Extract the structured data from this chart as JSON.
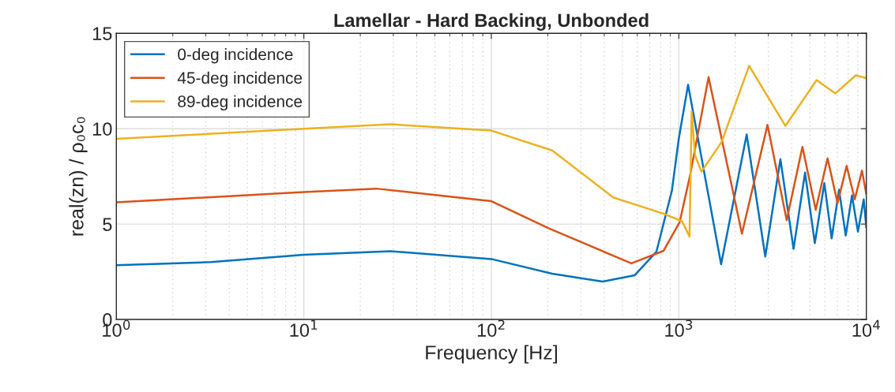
{
  "chart_data": {
    "type": "line",
    "title": "Lamellar - Hard Backing, Unbonded",
    "xlabel": "Frequency [Hz]",
    "ylabel": "real(zn) / ρ₀c₀",
    "log": "x",
    "xlim": [
      1,
      10000
    ],
    "ylim": [
      0,
      15
    ],
    "xticks": [
      {
        "value": 1,
        "label": "10$^{0}$"
      },
      {
        "value": 10,
        "label": "10$^{1}$"
      },
      {
        "value": 100,
        "label": "10$^{2}$"
      },
      {
        "value": 1000,
        "label": "10$^{3}$"
      },
      {
        "value": 10000,
        "label": "10$^{4}$"
      }
    ],
    "yticks": [
      0,
      5,
      10,
      15
    ],
    "grid": true,
    "legend": "top left",
    "line_style": "solid",
    "marker": "none",
    "series": [
      {
        "name": "0-deg incidence",
        "color": "#0072bd",
        "x": [
          1,
          3.2,
          10,
          29,
          100,
          211,
          392,
          582,
          759,
          918,
          1000,
          1120,
          1680,
          2300,
          2890,
          3480,
          4090,
          4710,
          5310,
          5970,
          6530,
          7150,
          7760,
          8380,
          9020,
          9680,
          10000
        ],
        "values": [
          2.84,
          3.01,
          3.39,
          3.58,
          3.17,
          2.4,
          1.99,
          2.32,
          3.55,
          6.75,
          9.5,
          12.3,
          2.9,
          9.7,
          3.3,
          8.4,
          3.7,
          7.7,
          4.0,
          7.15,
          4.25,
          6.8,
          4.4,
          6.5,
          4.6,
          6.3,
          4.8
        ]
      },
      {
        "name": "45-deg incidence",
        "color": "#d95319",
        "x": [
          1,
          10,
          24.4,
          100,
          202,
          558,
          829,
          1010,
          1150,
          1440,
          2170,
          2970,
          3760,
          4560,
          5370,
          6210,
          7020,
          7850,
          8670,
          9480,
          10000
        ],
        "values": [
          6.14,
          6.68,
          6.86,
          6.2,
          4.78,
          2.94,
          3.6,
          5.1,
          7.6,
          12.7,
          4.5,
          10.2,
          5.2,
          9.05,
          5.75,
          8.45,
          6.1,
          8.05,
          6.3,
          7.8,
          6.55
        ]
      },
      {
        "name": "89-deg incidence",
        "color": "#edb120",
        "x": [
          1,
          10,
          29,
          100,
          211,
          448,
          828,
          1040,
          1140,
          1170,
          1220,
          1320,
          1690,
          2370,
          3700,
          5430,
          6840,
          8790,
          10000
        ],
        "values": [
          9.47,
          10.0,
          10.23,
          9.9,
          8.86,
          6.39,
          5.55,
          5.15,
          4.35,
          10.9,
          8.6,
          7.75,
          9.3,
          13.3,
          10.15,
          12.55,
          11.85,
          12.8,
          12.65
        ]
      }
    ]
  }
}
